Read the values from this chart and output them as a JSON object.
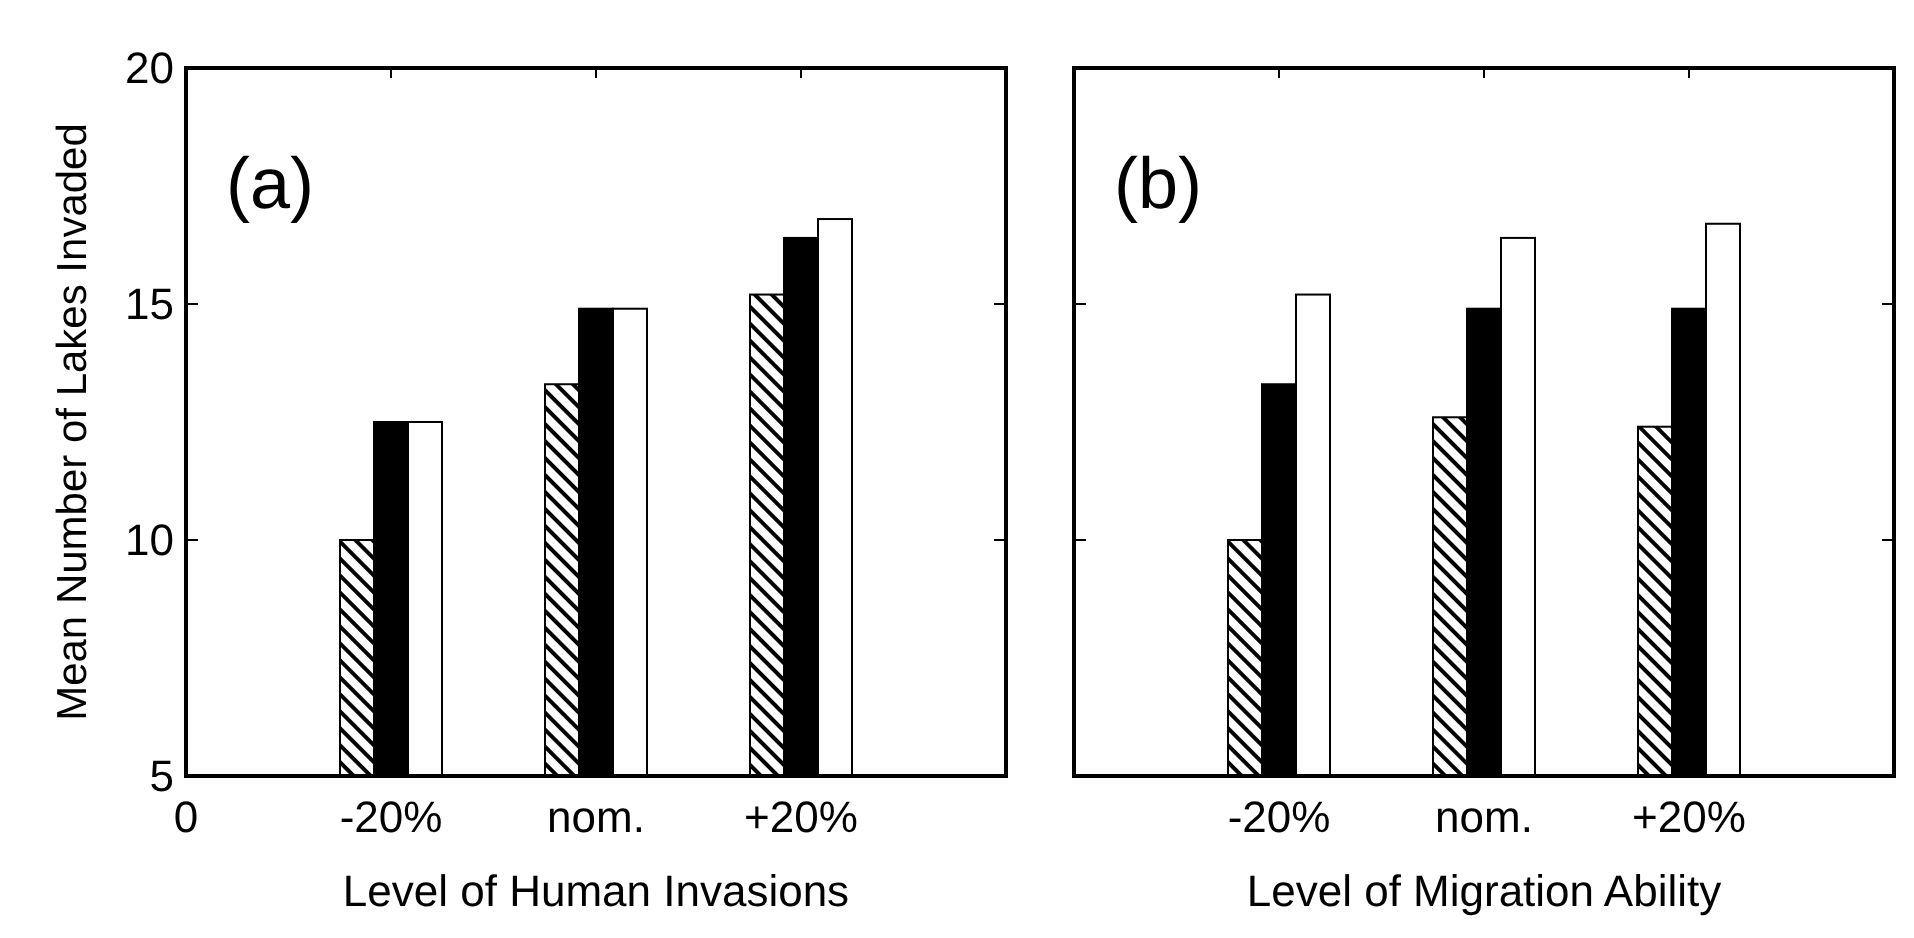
{
  "chart_data": [
    {
      "type": "bar",
      "annotations": [
        "(a)"
      ],
      "xlabel": "Level of Human Invasions",
      "ylabel": "Mean Number of Lakes Invaded",
      "categories": [
        "0",
        "-20%",
        "nom.",
        "+20%",
        null
      ],
      "ylim": [
        5,
        20
      ],
      "yticks": [
        5,
        10,
        15,
        20
      ],
      "series": [
        {
          "color": "#000000",
          "values": [
            null,
            10.0,
            13.3,
            15.2,
            null
          ]
        },
        {
          "color": "#000000",
          "values": [
            null,
            12.5,
            14.9,
            16.4,
            null
          ]
        },
        {
          "color": "#ffffff",
          "values": [
            null,
            12.5,
            14.9,
            16.8,
            null
          ]
        }
      ]
    },
    {
      "type": "bar",
      "annotations": [
        "(b)"
      ],
      "xlabel": "Level of Migration Ability",
      "categories": [
        null,
        "-20%",
        "nom.",
        "+20%",
        null
      ],
      "ylim": [
        5,
        20
      ],
      "yticks": [
        5,
        10,
        15,
        20
      ],
      "tick_labels": "x",
      "series": [
        {
          "color": "#000000",
          "values": [
            null,
            10.0,
            12.6,
            12.4,
            null
          ]
        },
        {
          "color": "#000000",
          "values": [
            null,
            13.3,
            14.9,
            14.9,
            null
          ]
        },
        {
          "color": "#ffffff",
          "values": [
            null,
            15.2,
            16.4,
            16.7,
            null
          ]
        }
      ]
    }
  ]
}
